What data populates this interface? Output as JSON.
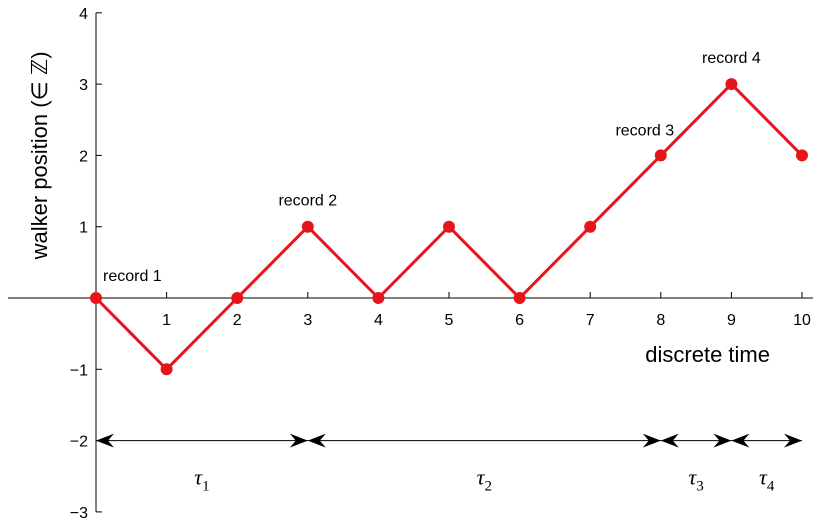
{
  "chart_data": {
    "type": "line",
    "xlabel": "discrete time",
    "ylabel": "walker position (∈ ℤ)",
    "xlim": [
      0,
      10
    ],
    "ylim": [
      -3,
      4
    ],
    "x_ticks": [
      1,
      2,
      3,
      4,
      5,
      6,
      7,
      8,
      9,
      10
    ],
    "y_ticks": [
      -3,
      -2,
      -1,
      1,
      2,
      3,
      4
    ],
    "y_tick_labels": [
      "−3",
      "−2",
      "−1",
      "1",
      "2",
      "3",
      "4"
    ],
    "series": [
      {
        "x": [
          0,
          1,
          2,
          3,
          4,
          5,
          6,
          7,
          8,
          9,
          10
        ],
        "y": [
          0,
          -1,
          0,
          1,
          0,
          1,
          0,
          1,
          2,
          3,
          2
        ],
        "color": "#e8141c"
      }
    ],
    "annotations": [
      {
        "text": "record 1",
        "x": 0,
        "y": 0
      },
      {
        "text": "record 2",
        "x": 3,
        "y": 1
      },
      {
        "text": "record 3",
        "x": 8,
        "y": 2
      },
      {
        "text": "record 4",
        "x": 9,
        "y": 3
      }
    ],
    "intervals": {
      "y": -2,
      "breaks": [
        0,
        3,
        8,
        9,
        10
      ],
      "labels": [
        {
          "symbol": "τ",
          "sub": "1"
        },
        {
          "symbol": "τ",
          "sub": "2"
        },
        {
          "symbol": "τ",
          "sub": "3"
        },
        {
          "symbol": "τ",
          "sub": "4"
        }
      ]
    }
  }
}
